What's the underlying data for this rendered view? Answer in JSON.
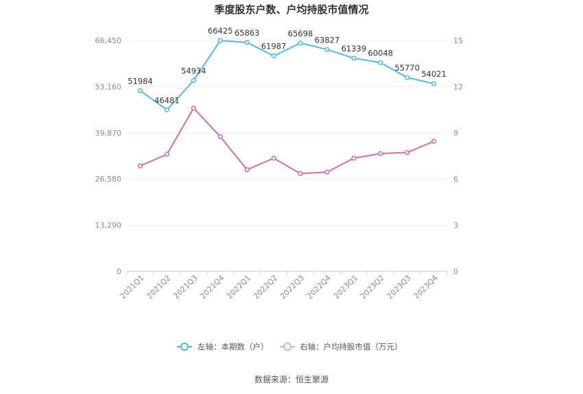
{
  "chart_data": {
    "type": "line",
    "title": "季度股东户数、户均持股市值情况",
    "categories": [
      "2021Q1",
      "2021Q2",
      "2021Q3",
      "2021Q4",
      "2022Q1",
      "2022Q2",
      "2022Q3",
      "2022Q4",
      "2023Q1",
      "2023Q2",
      "2023Q3",
      "2023Q4"
    ],
    "left_axis": {
      "ticks": [
        "0",
        "13,290",
        "26,580",
        "39,870",
        "53,160",
        "66,450"
      ],
      "tick_values": [
        0,
        13290,
        26580,
        39870,
        53160,
        66450
      ],
      "ylim": [
        0,
        66450
      ]
    },
    "right_axis": {
      "ticks": [
        "0",
        "3",
        "6",
        "9",
        "12",
        "15"
      ],
      "tick_values": [
        0,
        3,
        6,
        9,
        12,
        15
      ],
      "ylim": [
        0,
        15
      ]
    },
    "series": [
      {
        "name": "左轴：本期数（户）",
        "axis": "left",
        "color": "#4fb9ea",
        "values": [
          51984,
          46481,
          54934,
          66425,
          65863,
          61987,
          65698,
          63827,
          61339,
          60048,
          55770,
          54021
        ],
        "labels": [
          "51984",
          "46481",
          "54934",
          "66425",
          "65863",
          "61987",
          "65698",
          "63827",
          "61339",
          "60048",
          "55770",
          "54021"
        ]
      },
      {
        "name": "右轴：户均持股市值（万元）",
        "axis": "right",
        "color": "#d36bb1",
        "values": [
          6.85,
          7.6,
          10.6,
          8.75,
          6.6,
          7.35,
          6.35,
          6.45,
          7.35,
          7.65,
          7.72,
          8.45
        ]
      }
    ],
    "grid": true,
    "legend": "bottom-center"
  },
  "source_text": "数据来源：恒生聚源"
}
